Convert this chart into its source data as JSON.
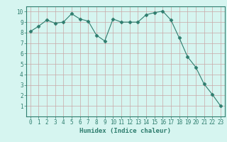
{
  "x": [
    0,
    1,
    2,
    3,
    4,
    5,
    6,
    7,
    8,
    9,
    10,
    11,
    12,
    13,
    14,
    15,
    16,
    17,
    18,
    19,
    20,
    21,
    22,
    23
  ],
  "y": [
    8.1,
    8.6,
    9.2,
    8.9,
    9.0,
    9.8,
    9.3,
    9.1,
    7.75,
    7.2,
    9.3,
    9.0,
    9.0,
    9.0,
    9.7,
    9.9,
    10.05,
    9.2,
    7.5,
    5.7,
    4.7,
    3.1,
    2.1,
    1.0
  ],
  "line_color": "#2e7d6e",
  "marker": "D",
  "marker_size": 2.5,
  "bg_color": "#d6f5f0",
  "grid_color": "#c8a8a8",
  "xlabel": "Humidex (Indice chaleur)",
  "xlim": [
    -0.5,
    23.5
  ],
  "ylim": [
    0,
    10.5
  ],
  "xticks": [
    0,
    1,
    2,
    3,
    4,
    5,
    6,
    7,
    8,
    9,
    10,
    11,
    12,
    13,
    14,
    15,
    16,
    17,
    18,
    19,
    20,
    21,
    22,
    23
  ],
  "yticks": [
    1,
    2,
    3,
    4,
    5,
    6,
    7,
    8,
    9,
    10
  ],
  "tick_color": "#2e7d6e",
  "label_color": "#2e7d6e",
  "axis_color": "#2e7d6e",
  "xlabel_fontsize": 6.5,
  "tick_fontsize": 5.5,
  "linewidth": 0.8
}
